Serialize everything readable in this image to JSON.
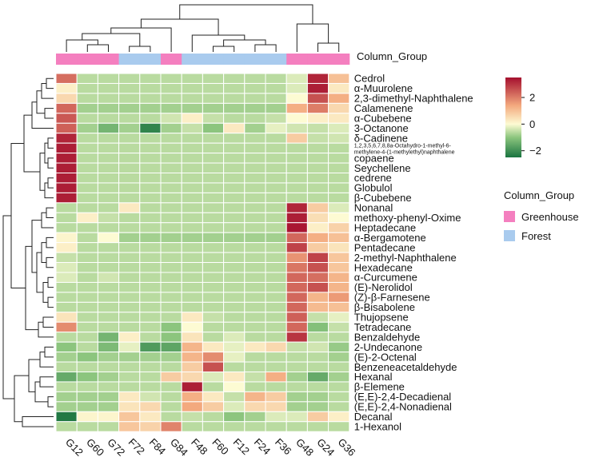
{
  "chart_data": {
    "type": "heatmap",
    "columns": [
      "G12",
      "G60",
      "G72",
      "F72",
      "F84",
      "G84",
      "F48",
      "F60",
      "F12",
      "F24",
      "F36",
      "G48",
      "G24",
      "G36"
    ],
    "column_group": [
      "Greenhouse",
      "Greenhouse",
      "Greenhouse",
      "Forest",
      "Forest",
      "Greenhouse",
      "Forest",
      "Forest",
      "Forest",
      "Forest",
      "Forest",
      "Greenhouse",
      "Greenhouse",
      "Greenhouse"
    ],
    "rows": [
      "Cedrol",
      "α-Muurolene",
      "2,3-dimethyl-Naphthalene",
      "Calamenene",
      "α-Cubebene",
      "3-Octanone",
      "δ-Cadinene",
      "1,2,3,5,6,7,8,8a-Octahydro-1-methyl-6-methylene-4-(1-methylethyl)naphthalene",
      "copaene",
      "Seychellene",
      "cedrene",
      "Globulol",
      "β-Cubebene",
      "Nonanal",
      "methoxy-phenyl-Oxime",
      "Heptadecane",
      "α-Bergamotene",
      "Pentadecane",
      "2-methyl-Naphthalene",
      "Hexadecane",
      "α-Curcumene",
      "(E)-Nerolidol",
      "(Z)-β-Farnesene",
      "β-Bisabolene",
      "Thujopsene",
      "Tetradecane",
      "Benzaldehyde",
      "2-Undecanone",
      "(E)-2-Octenal",
      "Benzeneacetaldehyde",
      "Hexanal",
      "β-Elemene",
      "(E,E)-2,4-Decadienal",
      "(E,E)-2,4-Nonadienal",
      "Decanal",
      "1-Hexanol"
    ],
    "values": [
      [
        2.2,
        -0.6,
        -0.6,
        -0.6,
        -0.6,
        -0.6,
        -0.6,
        -0.6,
        -0.6,
        -0.6,
        -0.6,
        -0.3,
        3.2,
        1.0
      ],
      [
        0.2,
        -0.6,
        -0.6,
        -0.6,
        -0.6,
        -0.6,
        -0.6,
        -0.6,
        -0.6,
        -0.6,
        -0.6,
        -0.3,
        3.3,
        0.3
      ],
      [
        0.6,
        -0.6,
        -0.6,
        -0.6,
        -0.6,
        -0.6,
        -0.6,
        -0.6,
        -0.6,
        -0.6,
        -0.6,
        0.0,
        2.6,
        1.3
      ],
      [
        2.3,
        -0.8,
        -0.8,
        -0.8,
        -0.8,
        -0.8,
        -0.8,
        -0.8,
        -0.8,
        -0.8,
        -0.8,
        1.3,
        2.0,
        0.6
      ],
      [
        2.5,
        -0.6,
        -0.6,
        -0.6,
        -0.6,
        -0.4,
        0.2,
        -0.5,
        -0.6,
        -0.6,
        -0.5,
        0.0,
        0.2,
        0.3
      ],
      [
        2.4,
        -0.8,
        -1.3,
        -0.8,
        -2.2,
        -0.8,
        -0.5,
        -1.0,
        0.3,
        -0.8,
        -0.2,
        -0.4,
        -0.5,
        -0.3
      ],
      [
        3.2,
        -0.6,
        -0.6,
        -0.6,
        -0.6,
        -0.6,
        -0.6,
        -0.6,
        -0.6,
        -0.6,
        -0.6,
        0.8,
        -0.5,
        -0.4
      ],
      [
        3.3,
        -0.6,
        -0.6,
        -0.6,
        -0.6,
        -0.6,
        -0.6,
        -0.6,
        -0.6,
        -0.6,
        -0.6,
        -0.6,
        -0.6,
        -0.6
      ],
      [
        3.3,
        -0.6,
        -0.6,
        -0.6,
        -0.6,
        -0.6,
        -0.6,
        -0.6,
        -0.6,
        -0.6,
        -0.6,
        -0.6,
        -0.6,
        -0.6
      ],
      [
        3.3,
        -0.6,
        -0.6,
        -0.6,
        -0.6,
        -0.6,
        -0.6,
        -0.6,
        -0.6,
        -0.6,
        -0.6,
        -0.6,
        -0.6,
        -0.6
      ],
      [
        3.3,
        -0.6,
        -0.6,
        -0.6,
        -0.6,
        -0.6,
        -0.6,
        -0.6,
        -0.6,
        -0.6,
        -0.6,
        -0.6,
        -0.6,
        -0.6
      ],
      [
        3.3,
        -0.6,
        -0.6,
        -0.6,
        -0.6,
        -0.6,
        -0.6,
        -0.6,
        -0.6,
        -0.6,
        -0.6,
        -0.6,
        -0.6,
        -0.6
      ],
      [
        3.3,
        -0.6,
        -0.6,
        -0.6,
        -0.6,
        -0.6,
        -0.6,
        -0.6,
        -0.6,
        -0.6,
        -0.6,
        -0.6,
        -0.6,
        -0.6
      ],
      [
        -0.6,
        -0.6,
        -0.6,
        0.3,
        -0.6,
        -0.6,
        -0.6,
        -0.6,
        -0.6,
        -0.6,
        -0.6,
        3.2,
        0.8,
        -0.3
      ],
      [
        -0.6,
        0.2,
        -0.5,
        -0.6,
        -0.6,
        -0.6,
        -0.6,
        -0.6,
        -0.6,
        -0.6,
        -0.6,
        3.3,
        0.5,
        0.0
      ],
      [
        -0.6,
        -0.6,
        -0.6,
        -0.6,
        -0.6,
        -0.6,
        -0.6,
        -0.6,
        -0.6,
        -0.6,
        -0.6,
        3.4,
        0.2,
        0.7
      ],
      [
        0.1,
        -0.6,
        0.0,
        -0.8,
        -0.8,
        -0.8,
        -0.8,
        -0.8,
        -0.8,
        -0.8,
        -0.8,
        2.3,
        1.3,
        1.0
      ],
      [
        0.2,
        -0.6,
        -0.6,
        -0.6,
        -0.6,
        -0.6,
        -0.6,
        -0.6,
        -0.6,
        -0.6,
        -0.6,
        2.8,
        0.8,
        0.4
      ],
      [
        -0.5,
        -0.6,
        -0.6,
        -0.6,
        -0.6,
        -0.6,
        -0.6,
        -0.6,
        -0.6,
        -0.6,
        -0.6,
        1.7,
        2.8,
        0.9
      ],
      [
        -0.3,
        -0.6,
        -0.6,
        -0.6,
        -0.6,
        -0.6,
        -0.6,
        -0.6,
        -0.6,
        -0.6,
        -0.6,
        2.1,
        2.6,
        0.9
      ],
      [
        -0.3,
        -0.6,
        -0.4,
        -0.6,
        -0.6,
        -0.6,
        -0.6,
        -0.6,
        -0.6,
        -0.6,
        -0.6,
        2.3,
        2.2,
        1.2
      ],
      [
        -0.6,
        -0.6,
        -0.6,
        -0.6,
        -0.6,
        -0.6,
        -0.6,
        -0.6,
        -0.6,
        -0.6,
        -0.6,
        2.3,
        2.6,
        1.2
      ],
      [
        -0.6,
        -0.6,
        -0.6,
        -0.6,
        -0.6,
        -0.6,
        -0.6,
        -0.6,
        -0.6,
        -0.6,
        -0.6,
        2.3,
        1.2,
        1.6
      ],
      [
        -0.6,
        -0.6,
        -0.6,
        -0.6,
        -0.6,
        -0.6,
        -0.6,
        -0.6,
        -0.6,
        -0.6,
        -0.6,
        2.3,
        1.1,
        1.0
      ],
      [
        0.4,
        -0.6,
        -0.6,
        -0.6,
        -0.6,
        -0.6,
        0.3,
        -0.5,
        -0.6,
        -0.6,
        -0.6,
        2.4,
        -0.5,
        -0.2
      ],
      [
        1.8,
        -0.6,
        -0.6,
        -0.6,
        -0.6,
        -1.0,
        0.0,
        -0.6,
        -0.6,
        -0.6,
        -0.6,
        2.3,
        -1.1,
        -0.5
      ],
      [
        -0.6,
        -0.6,
        -1.3,
        0.2,
        -0.6,
        -1.0,
        0.4,
        -0.6,
        -0.3,
        -0.6,
        -0.6,
        3.0,
        -0.6,
        -0.6
      ],
      [
        -1.0,
        -0.6,
        -1.2,
        -0.2,
        -1.8,
        -1.6,
        1.2,
        0.3,
        -0.2,
        0.3,
        0.6,
        -0.5,
        -0.4,
        -0.9
      ],
      [
        -0.8,
        -1.0,
        -0.8,
        -0.8,
        -0.8,
        -0.8,
        1.2,
        1.8,
        -0.2,
        -0.6,
        -0.6,
        -0.6,
        -0.6,
        -0.8
      ],
      [
        -0.6,
        -0.6,
        -0.6,
        -0.6,
        -0.6,
        -0.6,
        0.8,
        2.6,
        -0.6,
        -0.6,
        -0.6,
        -0.6,
        -0.6,
        -0.6
      ],
      [
        -1.5,
        -1.0,
        -0.8,
        -0.6,
        -0.6,
        0.8,
        0.6,
        -0.3,
        0.3,
        -0.5,
        1.3,
        -0.8,
        -1.5,
        -0.8
      ],
      [
        -0.6,
        -0.6,
        -0.6,
        -0.6,
        -0.6,
        -0.6,
        3.3,
        -0.6,
        0.0,
        -0.6,
        -0.6,
        -0.6,
        -0.6,
        -0.6
      ],
      [
        -0.8,
        -0.8,
        -0.8,
        0.3,
        -0.4,
        -0.6,
        1.3,
        0.3,
        -0.5,
        1.2,
        0.8,
        -0.8,
        -0.8,
        -0.6
      ],
      [
        -0.8,
        -0.8,
        -0.8,
        0.4,
        0.6,
        -0.6,
        1.4,
        0.8,
        -0.3,
        0.6,
        0.6,
        -0.8,
        -0.8,
        -0.6
      ],
      [
        -2.4,
        0.1,
        0.1,
        0.9,
        0.3,
        -0.6,
        -0.5,
        -0.6,
        -1.0,
        -0.8,
        -0.3,
        -0.3,
        0.8,
        0.2
      ],
      [
        -0.6,
        -0.6,
        -0.6,
        0.9,
        0.7,
        1.9,
        -0.6,
        -0.6,
        -0.6,
        -0.6,
        -0.6,
        -0.6,
        -0.6,
        -0.6
      ]
    ],
    "colorbar": {
      "ticks": [
        2,
        0,
        -2
      ],
      "range": [
        -2.5,
        3.5
      ]
    },
    "legend": {
      "title": "Column_Group",
      "items": [
        {
          "label": "Greenhouse",
          "color": "#f47fbf"
        },
        {
          "label": "Forest",
          "color": "#a9cbee"
        }
      ]
    },
    "group_colors": {
      "Greenhouse": "#f47fbf",
      "Forest": "#a9cbee"
    },
    "annotation_label": "Column_Group",
    "colors": {
      "low": "#1a7440",
      "mid": "#fdfbd3",
      "high": "#a50f2e"
    }
  }
}
